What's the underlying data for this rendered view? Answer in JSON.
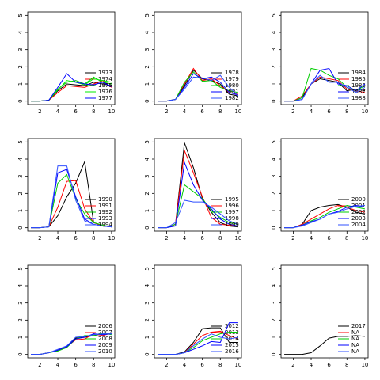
{
  "chart_data": [
    {
      "type": "line",
      "x": [
        1,
        2,
        3,
        4,
        5,
        6,
        7,
        8,
        9,
        10
      ],
      "xlim": [
        0.64,
        10.36
      ],
      "ylim": [
        -0.2,
        5.2
      ],
      "xticks": [
        2,
        4,
        6,
        8,
        10
      ],
      "yticks": [
        0,
        1,
        2,
        3,
        4,
        5
      ],
      "series": [
        {
          "name": "1973",
          "color": "#000000",
          "values": [
            0,
            0,
            0.05,
            0.6,
            1.0,
            0.95,
            0.9,
            1.1,
            1.0,
            0.9
          ]
        },
        {
          "name": "1974",
          "color": "#ff0000",
          "values": [
            0,
            0,
            0.05,
            0.5,
            0.9,
            0.85,
            0.8,
            1.0,
            1.2,
            0.8
          ]
        },
        {
          "name": "1975",
          "color": "#00cd00",
          "values": [
            0,
            0,
            0.05,
            0.7,
            1.1,
            1.2,
            1.0,
            1.4,
            1.1,
            1.0
          ]
        },
        {
          "name": "1976",
          "color": "#00ee00",
          "values": [
            0,
            0,
            0.05,
            0.65,
            1.2,
            1.1,
            0.95,
            1.3,
            1.2,
            1.1
          ]
        },
        {
          "name": "1977",
          "color": "#0000ff",
          "values": [
            0,
            0,
            0.05,
            0.8,
            1.6,
            1.1,
            1.0,
            0.95,
            1.1,
            0.85
          ]
        }
      ]
    },
    {
      "type": "line",
      "x": [
        1,
        2,
        3,
        4,
        5,
        6,
        7,
        8,
        9,
        10
      ],
      "xlim": [
        0.64,
        10.36
      ],
      "ylim": [
        -0.2,
        5.2
      ],
      "xticks": [
        2,
        4,
        6,
        8,
        10
      ],
      "yticks": [
        0,
        1,
        2,
        3,
        4,
        5
      ],
      "series": [
        {
          "name": "1978",
          "color": "#000000",
          "values": [
            0,
            0,
            0.1,
            0.9,
            1.8,
            1.3,
            1.2,
            1.0,
            0.4,
            0.3
          ]
        },
        {
          "name": "1979",
          "color": "#ff0000",
          "values": [
            0,
            0,
            0.1,
            1.0,
            1.9,
            1.2,
            1.3,
            0.9,
            0.5,
            0.4
          ]
        },
        {
          "name": "1980",
          "color": "#00cd00",
          "values": [
            0,
            0,
            0.1,
            1.1,
            1.7,
            1.15,
            1.2,
            0.8,
            0.6,
            0.5
          ]
        },
        {
          "name": "1981",
          "color": "#0000ff",
          "values": [
            0,
            0,
            0.1,
            0.8,
            1.6,
            1.3,
            1.4,
            1.1,
            0.5,
            0.35
          ]
        },
        {
          "name": "1982",
          "color": "#3050ff",
          "values": [
            0,
            0,
            0.1,
            0.7,
            1.4,
            1.35,
            1.2,
            1.5,
            0.8,
            0.3
          ]
        }
      ]
    },
    {
      "type": "line",
      "x": [
        1,
        2,
        3,
        4,
        5,
        6,
        7,
        8,
        9,
        10
      ],
      "xlim": [
        0.64,
        10.36
      ],
      "ylim": [
        -0.2,
        5.2
      ],
      "xticks": [
        2,
        4,
        6,
        8,
        10
      ],
      "yticks": [
        0,
        1,
        2,
        3,
        4,
        5
      ],
      "series": [
        {
          "name": "1984",
          "color": "#000000",
          "values": [
            0,
            0,
            0.2,
            1.0,
            1.3,
            1.2,
            1.1,
            0.6,
            0.7,
            0.6
          ]
        },
        {
          "name": "1985",
          "color": "#ff0000",
          "values": [
            0,
            0,
            0.3,
            1.0,
            1.4,
            1.3,
            1.2,
            0.7,
            0.6,
            0.5
          ]
        },
        {
          "name": "1986",
          "color": "#00cd00",
          "values": [
            0,
            0,
            0.2,
            1.9,
            1.8,
            1.5,
            1.3,
            0.8,
            0.6,
            0.9
          ]
        },
        {
          "name": "1987",
          "color": "#0000ff",
          "values": [
            0,
            0,
            0.1,
            1.0,
            1.8,
            1.9,
            1.0,
            0.9,
            0.6,
            1.0
          ]
        },
        {
          "name": "1988",
          "color": "#3050ff",
          "values": [
            0,
            0,
            0.1,
            1.0,
            1.5,
            1.1,
            1.1,
            0.8,
            0.5,
            0.8
          ]
        }
      ]
    },
    {
      "type": "line",
      "x": [
        1,
        2,
        3,
        4,
        5,
        6,
        7,
        8,
        9,
        10
      ],
      "xlim": [
        0.64,
        10.36
      ],
      "ylim": [
        -0.2,
        5.2
      ],
      "xticks": [
        2,
        4,
        6,
        8,
        10
      ],
      "yticks": [
        0,
        1,
        2,
        3,
        4,
        5
      ],
      "series": [
        {
          "name": "1990",
          "color": "#000000",
          "values": [
            0,
            0,
            0.05,
            0.7,
            1.8,
            2.6,
            3.85,
            0.3,
            0.1,
            0.05
          ]
        },
        {
          "name": "1991",
          "color": "#ff0000",
          "values": [
            0,
            0,
            0.05,
            1.2,
            2.7,
            2.75,
            1.1,
            0.3,
            0.1,
            0.05
          ]
        },
        {
          "name": "1992",
          "color": "#00cd00",
          "values": [
            0,
            0,
            0.05,
            2.6,
            3.1,
            1.7,
            0.8,
            0.3,
            0.15,
            0.05
          ]
        },
        {
          "name": "1993",
          "color": "#0000ff",
          "values": [
            0,
            0,
            0.05,
            3.2,
            3.4,
            1.8,
            0.5,
            0.2,
            0.1,
            0.05
          ]
        },
        {
          "name": "1994",
          "color": "#3050ff",
          "values": [
            0,
            0,
            0.05,
            3.6,
            3.6,
            1.6,
            0.4,
            0.2,
            0.1,
            0.05
          ]
        }
      ]
    },
    {
      "type": "line",
      "x": [
        1,
        2,
        3,
        4,
        5,
        6,
        7,
        8,
        9,
        10
      ],
      "xlim": [
        0.64,
        10.36
      ],
      "ylim": [
        -0.2,
        5.2
      ],
      "xticks": [
        2,
        4,
        6,
        8,
        10
      ],
      "yticks": [
        0,
        1,
        2,
        3,
        4,
        5
      ],
      "series": [
        {
          "name": "1995",
          "color": "#000000",
          "values": [
            0,
            0,
            0.2,
            4.95,
            3.5,
            1.7,
            0.9,
            0.3,
            0.1,
            0.05
          ]
        },
        {
          "name": "1996",
          "color": "#ff0000",
          "values": [
            0,
            0,
            0.2,
            4.5,
            3.2,
            1.8,
            0.6,
            0.2,
            0.15,
            0.1
          ]
        },
        {
          "name": "1997",
          "color": "#00cd00",
          "values": [
            0,
            0,
            0.2,
            2.5,
            2.1,
            1.7,
            1.0,
            0.6,
            0.3,
            0.2
          ]
        },
        {
          "name": "1998",
          "color": "#0000ff",
          "values": [
            0,
            0,
            0.1,
            3.8,
            2.5,
            1.6,
            1.1,
            0.5,
            0.2,
            0.1
          ]
        },
        {
          "name": "1999",
          "color": "#3050ff",
          "values": [
            0,
            0,
            0.3,
            1.6,
            1.5,
            1.5,
            1.2,
            0.8,
            0.4,
            0.2
          ]
        }
      ]
    },
    {
      "type": "line",
      "x": [
        1,
        2,
        3,
        4,
        5,
        6,
        7,
        8,
        9,
        10
      ],
      "xlim": [
        0.64,
        10.36
      ],
      "ylim": [
        -0.2,
        5.2
      ],
      "xticks": [
        2,
        4,
        6,
        8,
        10
      ],
      "yticks": [
        0,
        1,
        2,
        3,
        4,
        5
      ],
      "series": [
        {
          "name": "2000",
          "color": "#000000",
          "values": [
            0,
            0,
            0.2,
            1.0,
            1.2,
            1.3,
            1.35,
            1.2,
            0.9,
            0.8
          ]
        },
        {
          "name": "2001",
          "color": "#ff0000",
          "values": [
            0,
            0,
            0.2,
            0.5,
            0.8,
            1.1,
            1.3,
            1.2,
            1.0,
            0.9
          ]
        },
        {
          "name": "2002",
          "color": "#00cd00",
          "values": [
            0,
            0,
            0.15,
            0.4,
            0.6,
            0.9,
            1.1,
            1.3,
            1.2,
            1.1
          ]
        },
        {
          "name": "2003",
          "color": "#0000ff",
          "values": [
            0,
            0,
            0.15,
            0.35,
            0.5,
            0.8,
            0.95,
            1.2,
            1.3,
            1.2
          ]
        },
        {
          "name": "2004",
          "color": "#3050ff",
          "values": [
            0,
            0,
            0.1,
            0.3,
            0.5,
            0.8,
            0.9,
            1.1,
            1.25,
            1.3
          ]
        }
      ]
    },
    {
      "type": "line",
      "x": [
        1,
        2,
        3,
        4,
        5,
        6,
        7,
        8,
        9,
        10
      ],
      "xlim": [
        0.64,
        10.36
      ],
      "ylim": [
        -0.2,
        5.2
      ],
      "xticks": [
        2,
        4,
        6,
        8,
        10
      ],
      "yticks": [
        0,
        1,
        2,
        3,
        4,
        5
      ],
      "series": [
        {
          "name": "2006",
          "color": "#000000",
          "values": [
            0,
            0,
            0.1,
            0.25,
            0.45,
            0.95,
            1.0,
            1.1,
            1.2,
            1.2
          ]
        },
        {
          "name": "2007",
          "color": "#ff0000",
          "values": [
            0,
            0,
            0.1,
            0.25,
            0.45,
            0.85,
            0.9,
            1.2,
            1.1,
            1.25
          ]
        },
        {
          "name": "2008",
          "color": "#00cd00",
          "values": [
            0,
            0,
            0.1,
            0.2,
            0.4,
            0.9,
            1.1,
            1.1,
            1.25,
            1.15
          ]
        },
        {
          "name": "2009",
          "color": "#0000ff",
          "values": [
            0,
            0,
            0.1,
            0.25,
            0.45,
            0.9,
            1.0,
            1.2,
            1.15,
            1.2
          ]
        },
        {
          "name": "2010",
          "color": "#3050ff",
          "values": [
            0,
            0,
            0.1,
            0.3,
            0.5,
            1.0,
            1.05,
            1.15,
            1.2,
            1.2
          ]
        }
      ]
    },
    {
      "type": "line",
      "x": [
        1,
        2,
        3,
        4,
        5,
        6,
        7,
        8,
        9,
        10
      ],
      "xlim": [
        0.64,
        10.36
      ],
      "ylim": [
        -0.2,
        5.2
      ],
      "xticks": [
        2,
        4,
        6,
        8,
        10
      ],
      "yticks": [
        0,
        1,
        2,
        3,
        4,
        5
      ],
      "series": [
        {
          "name": "2012",
          "color": "#000000",
          "values": [
            0,
            0,
            0,
            0.15,
            0.7,
            1.5,
            1.55,
            1.55,
            0.7,
            0.7
          ]
        },
        {
          "name": "2013",
          "color": "#ff0000",
          "values": [
            0,
            0,
            0,
            0.1,
            0.6,
            1.1,
            1.3,
            1.35,
            1.1,
            0.9
          ]
        },
        {
          "name": "2014",
          "color": "#00cd00",
          "values": [
            0,
            0,
            0,
            0.1,
            0.4,
            0.8,
            1.0,
            1.2,
            1.3,
            1.3
          ]
        },
        {
          "name": "2015",
          "color": "#0000ff",
          "values": [
            0,
            0,
            0,
            0.1,
            0.3,
            0.5,
            0.75,
            0.7,
            1.85,
            1.85
          ]
        },
        {
          "name": "2016",
          "color": "#3050ff",
          "values": [
            0,
            0,
            0,
            0.1,
            0.5,
            0.9,
            1.2,
            1.0,
            0.9,
            1.0
          ]
        }
      ]
    },
    {
      "type": "line",
      "x": [
        1,
        2,
        3,
        4,
        5,
        6,
        7,
        8,
        9,
        10
      ],
      "xlim": [
        0.64,
        10.36
      ],
      "ylim": [
        -0.2,
        5.2
      ],
      "xticks": [
        2,
        4,
        6,
        8,
        10
      ],
      "yticks": [
        0,
        1,
        2,
        3,
        4,
        5
      ],
      "series": [
        {
          "name": "2017",
          "color": "#000000",
          "values": [
            0,
            0,
            0,
            0.1,
            0.5,
            0.95,
            1.05,
            1.05,
            1.1,
            1.05
          ]
        },
        {
          "name": "NA",
          "color": "#ff0000",
          "values": [
            null,
            null,
            null,
            null,
            null,
            null,
            null,
            null,
            null,
            null
          ]
        },
        {
          "name": "NA",
          "color": "#00cd00",
          "values": [
            null,
            null,
            null,
            null,
            null,
            null,
            null,
            null,
            null,
            null
          ]
        },
        {
          "name": "NA",
          "color": "#0000ff",
          "values": [
            null,
            null,
            null,
            null,
            null,
            null,
            null,
            null,
            null,
            null
          ]
        },
        {
          "name": "NA",
          "color": "#3050ff",
          "values": [
            null,
            null,
            null,
            null,
            null,
            null,
            null,
            null,
            null,
            null
          ]
        }
      ]
    }
  ]
}
